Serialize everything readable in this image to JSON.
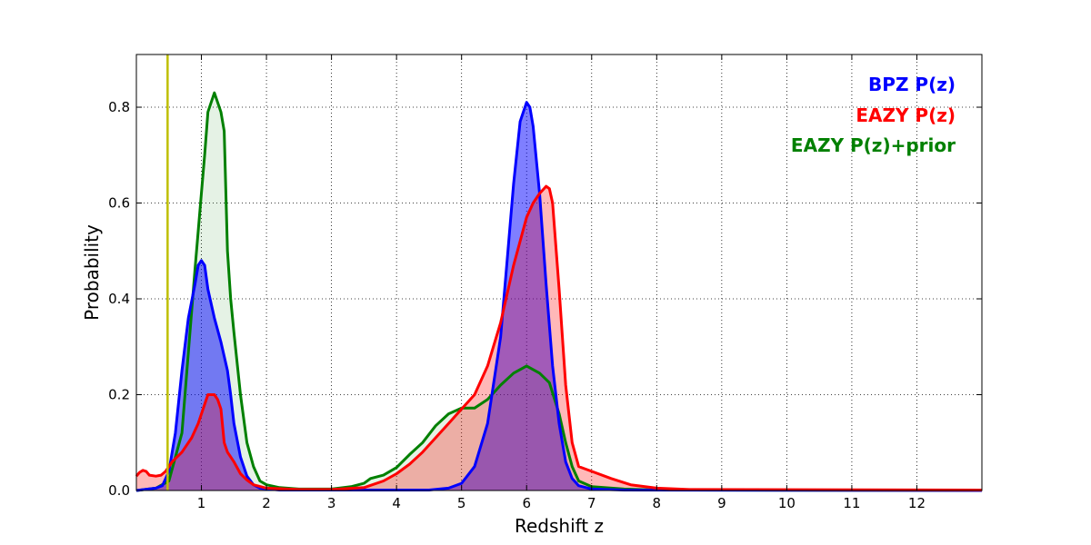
{
  "chart_data": {
    "type": "area",
    "xlabel": "Redshift z",
    "ylabel": "Probability",
    "xlim": [
      0,
      13
    ],
    "ylim": [
      0,
      0.91
    ],
    "x_ticks": [
      1,
      2,
      3,
      4,
      5,
      6,
      7,
      8,
      9,
      10,
      11,
      12
    ],
    "y_ticks": [
      0.0,
      0.2,
      0.4,
      0.6,
      0.8
    ],
    "x_tick_labels": [
      "1",
      "2",
      "3",
      "4",
      "5",
      "6",
      "7",
      "8",
      "9",
      "10",
      "11",
      "12"
    ],
    "y_tick_labels": [
      "0.0",
      "0.2",
      "0.4",
      "0.6",
      "0.8"
    ],
    "grid": true,
    "legend_position": "top-right",
    "reference_line": {
      "x": 0.48,
      "color": "#bfbf00"
    },
    "series": [
      {
        "name": "EAZY P(z)+prior",
        "color": "#008000",
        "fill": "#008000",
        "fill_opacity": 0.1,
        "points": [
          [
            0,
            0
          ],
          [
            0.3,
            0.005
          ],
          [
            0.5,
            0.02
          ],
          [
            0.7,
            0.12
          ],
          [
            0.9,
            0.46
          ],
          [
            1.0,
            0.62
          ],
          [
            1.05,
            0.7
          ],
          [
            1.1,
            0.79
          ],
          [
            1.2,
            0.83
          ],
          [
            1.3,
            0.79
          ],
          [
            1.35,
            0.75
          ],
          [
            1.4,
            0.5
          ],
          [
            1.45,
            0.4
          ],
          [
            1.5,
            0.33
          ],
          [
            1.6,
            0.2
          ],
          [
            1.7,
            0.1
          ],
          [
            1.8,
            0.05
          ],
          [
            1.9,
            0.02
          ],
          [
            2.0,
            0.012
          ],
          [
            2.2,
            0.006
          ],
          [
            2.5,
            0.003
          ],
          [
            3.0,
            0.003
          ],
          [
            3.3,
            0.008
          ],
          [
            3.5,
            0.015
          ],
          [
            3.6,
            0.025
          ],
          [
            3.8,
            0.032
          ],
          [
            4.0,
            0.048
          ],
          [
            4.2,
            0.075
          ],
          [
            4.4,
            0.1
          ],
          [
            4.6,
            0.135
          ],
          [
            4.8,
            0.16
          ],
          [
            5.0,
            0.172
          ],
          [
            5.2,
            0.172
          ],
          [
            5.4,
            0.19
          ],
          [
            5.6,
            0.22
          ],
          [
            5.8,
            0.245
          ],
          [
            6.0,
            0.26
          ],
          [
            6.2,
            0.245
          ],
          [
            6.35,
            0.225
          ],
          [
            6.5,
            0.16
          ],
          [
            6.6,
            0.1
          ],
          [
            6.7,
            0.05
          ],
          [
            6.8,
            0.02
          ],
          [
            7.0,
            0.008
          ],
          [
            7.5,
            0.003
          ],
          [
            8.0,
            0.001
          ],
          [
            13,
            0
          ]
        ]
      },
      {
        "name": "BPZ P(z)",
        "color": "#0000ff",
        "fill": "#0000ff",
        "fill_opacity": 0.5,
        "points": [
          [
            0,
            0
          ],
          [
            0.3,
            0.005
          ],
          [
            0.4,
            0.01
          ],
          [
            0.5,
            0.04
          ],
          [
            0.6,
            0.12
          ],
          [
            0.7,
            0.25
          ],
          [
            0.8,
            0.36
          ],
          [
            0.9,
            0.43
          ],
          [
            0.95,
            0.47
          ],
          [
            1.0,
            0.48
          ],
          [
            1.05,
            0.47
          ],
          [
            1.1,
            0.42
          ],
          [
            1.2,
            0.36
          ],
          [
            1.3,
            0.31
          ],
          [
            1.4,
            0.25
          ],
          [
            1.45,
            0.2
          ],
          [
            1.5,
            0.14
          ],
          [
            1.6,
            0.07
          ],
          [
            1.7,
            0.03
          ],
          [
            1.8,
            0.012
          ],
          [
            1.9,
            0.005
          ],
          [
            2.2,
            0.001
          ],
          [
            4.5,
            0.001
          ],
          [
            4.8,
            0.005
          ],
          [
            5.0,
            0.015
          ],
          [
            5.2,
            0.05
          ],
          [
            5.4,
            0.14
          ],
          [
            5.6,
            0.32
          ],
          [
            5.7,
            0.48
          ],
          [
            5.8,
            0.64
          ],
          [
            5.9,
            0.77
          ],
          [
            6.0,
            0.81
          ],
          [
            6.05,
            0.8
          ],
          [
            6.1,
            0.76
          ],
          [
            6.2,
            0.62
          ],
          [
            6.3,
            0.43
          ],
          [
            6.4,
            0.26
          ],
          [
            6.5,
            0.14
          ],
          [
            6.6,
            0.06
          ],
          [
            6.7,
            0.025
          ],
          [
            6.8,
            0.01
          ],
          [
            7.0,
            0.003
          ],
          [
            7.5,
            0.001
          ],
          [
            13,
            0
          ]
        ]
      },
      {
        "name": "EAZY P(z)",
        "color": "#ff0000",
        "fill": "#ff0000",
        "fill_opacity": 0.28,
        "points": [
          [
            0,
            0.03
          ],
          [
            0.05,
            0.038
          ],
          [
            0.1,
            0.042
          ],
          [
            0.15,
            0.04
          ],
          [
            0.2,
            0.032
          ],
          [
            0.3,
            0.03
          ],
          [
            0.38,
            0.032
          ],
          [
            0.45,
            0.04
          ],
          [
            0.55,
            0.06
          ],
          [
            0.7,
            0.08
          ],
          [
            0.85,
            0.11
          ],
          [
            0.95,
            0.14
          ],
          [
            1.05,
            0.18
          ],
          [
            1.1,
            0.2
          ],
          [
            1.2,
            0.2
          ],
          [
            1.25,
            0.19
          ],
          [
            1.3,
            0.17
          ],
          [
            1.35,
            0.1
          ],
          [
            1.4,
            0.08
          ],
          [
            1.5,
            0.06
          ],
          [
            1.6,
            0.035
          ],
          [
            1.7,
            0.022
          ],
          [
            1.8,
            0.012
          ],
          [
            2.0,
            0.005
          ],
          [
            2.5,
            0.002
          ],
          [
            3.0,
            0.002
          ],
          [
            3.5,
            0.006
          ],
          [
            3.8,
            0.02
          ],
          [
            4.0,
            0.035
          ],
          [
            4.2,
            0.055
          ],
          [
            4.4,
            0.08
          ],
          [
            4.6,
            0.11
          ],
          [
            4.8,
            0.14
          ],
          [
            5.0,
            0.17
          ],
          [
            5.2,
            0.2
          ],
          [
            5.4,
            0.26
          ],
          [
            5.6,
            0.35
          ],
          [
            5.8,
            0.47
          ],
          [
            6.0,
            0.57
          ],
          [
            6.1,
            0.6
          ],
          [
            6.2,
            0.62
          ],
          [
            6.3,
            0.635
          ],
          [
            6.35,
            0.63
          ],
          [
            6.4,
            0.6
          ],
          [
            6.5,
            0.42
          ],
          [
            6.6,
            0.22
          ],
          [
            6.7,
            0.1
          ],
          [
            6.8,
            0.05
          ],
          [
            7.0,
            0.04
          ],
          [
            7.3,
            0.025
          ],
          [
            7.6,
            0.012
          ],
          [
            8.0,
            0.005
          ],
          [
            8.5,
            0.002
          ],
          [
            13,
            0.001
          ]
        ]
      }
    ],
    "legend_entries": [
      {
        "label": "BPZ P(z)",
        "color": "#0000ff"
      },
      {
        "label": "EAZY P(z)",
        "color": "#ff0000"
      },
      {
        "label": "EAZY P(z)+prior",
        "color": "#008000"
      }
    ]
  }
}
